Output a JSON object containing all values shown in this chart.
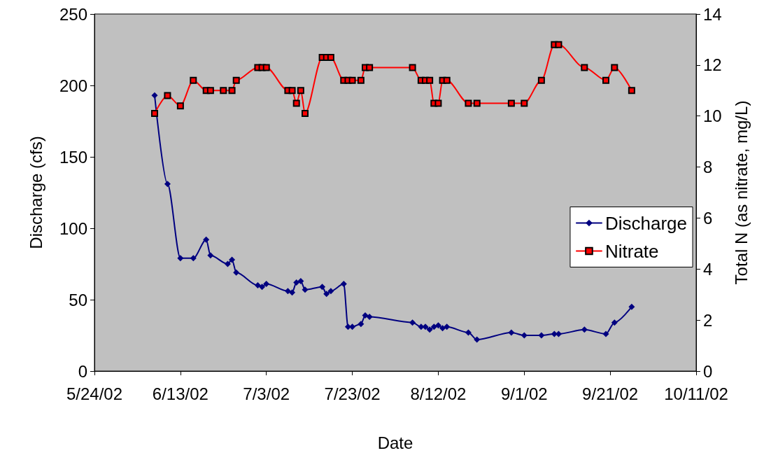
{
  "chart_data": {
    "type": "line",
    "xlabel": "Date",
    "ylabel": "Discharge (cfs)",
    "y2label": "Total N (as nitrate, mg/L)",
    "xlim": [
      "2002-05-24",
      "2002-10-11"
    ],
    "xticks": [
      {
        "value": "2002-05-24",
        "label": "5/24/02"
      },
      {
        "value": "2002-06-13",
        "label": "6/13/02"
      },
      {
        "value": "2002-07-03",
        "label": "7/3/02"
      },
      {
        "value": "2002-07-23",
        "label": "7/23/02"
      },
      {
        "value": "2002-08-12",
        "label": "8/12/02"
      },
      {
        "value": "2002-09-01",
        "label": "9/1/02"
      },
      {
        "value": "2002-09-21",
        "label": "9/21/02"
      },
      {
        "value": "2002-10-11",
        "label": "10/11/02"
      }
    ],
    "ylim": [
      0,
      250
    ],
    "yticks": [
      0,
      50,
      100,
      150,
      200,
      250
    ],
    "y2lim": [
      0,
      14
    ],
    "y2ticks": [
      0,
      2,
      4,
      6,
      8,
      10,
      12,
      14
    ],
    "grid": false,
    "legend": "right",
    "line_style": "solid",
    "series": [
      {
        "name": "Discharge",
        "color": "#000080",
        "marker": "diamond",
        "x": [
          "2002-06-07",
          "2002-06-10",
          "2002-06-13",
          "2002-06-16",
          "2002-06-19",
          "2002-06-20",
          "2002-06-24",
          "2002-06-25",
          "2002-06-26",
          "2002-07-01",
          "2002-07-02",
          "2002-07-03",
          "2002-07-08",
          "2002-07-09",
          "2002-07-10",
          "2002-07-11",
          "2002-07-12",
          "2002-07-16",
          "2002-07-17",
          "2002-07-18",
          "2002-07-21",
          "2002-07-22",
          "2002-07-23",
          "2002-07-25",
          "2002-07-26",
          "2002-07-27",
          "2002-08-06",
          "2002-08-08",
          "2002-08-09",
          "2002-08-10",
          "2002-08-11",
          "2002-08-12",
          "2002-08-13",
          "2002-08-14",
          "2002-08-19",
          "2002-08-21",
          "2002-08-29",
          "2002-09-01",
          "2002-09-05",
          "2002-09-08",
          "2002-09-09",
          "2002-09-15",
          "2002-09-20",
          "2002-09-22",
          "2002-09-26"
        ],
        "values": [
          193,
          131,
          79,
          79,
          92,
          81,
          75,
          78,
          69,
          60,
          59,
          61,
          56,
          55,
          62,
          63,
          57,
          59,
          54,
          56,
          61,
          31,
          31,
          33,
          39,
          38,
          34,
          31,
          31,
          29,
          31,
          32,
          30,
          31,
          27,
          22,
          27,
          25,
          25,
          26,
          26,
          29,
          26,
          34,
          45
        ]
      },
      {
        "name": "Nitrate",
        "color": "#ff0000",
        "marker": "square",
        "axis": "y2",
        "x": [
          "2002-06-07",
          "2002-06-10",
          "2002-06-13",
          "2002-06-16",
          "2002-06-19",
          "2002-06-20",
          "2002-06-23",
          "2002-06-25",
          "2002-06-26",
          "2002-07-01",
          "2002-07-02",
          "2002-07-03",
          "2002-07-08",
          "2002-07-09",
          "2002-07-10",
          "2002-07-11",
          "2002-07-12",
          "2002-07-16",
          "2002-07-17",
          "2002-07-18",
          "2002-07-21",
          "2002-07-22",
          "2002-07-23",
          "2002-07-25",
          "2002-07-26",
          "2002-07-27",
          "2002-08-06",
          "2002-08-08",
          "2002-08-09",
          "2002-08-10",
          "2002-08-11",
          "2002-08-12",
          "2002-08-13",
          "2002-08-14",
          "2002-08-19",
          "2002-08-21",
          "2002-08-29",
          "2002-09-01",
          "2002-09-05",
          "2002-09-08",
          "2002-09-09",
          "2002-09-15",
          "2002-09-20",
          "2002-09-22",
          "2002-09-26"
        ],
        "values": [
          10.1,
          10.8,
          10.4,
          11.4,
          11.0,
          11.0,
          11.0,
          11.0,
          11.4,
          11.9,
          11.9,
          11.9,
          11.0,
          11.0,
          10.5,
          11.0,
          10.1,
          12.3,
          12.3,
          12.3,
          11.4,
          11.4,
          11.4,
          11.4,
          11.9,
          11.9,
          11.9,
          11.4,
          11.4,
          11.4,
          10.5,
          10.5,
          11.4,
          11.4,
          10.5,
          10.5,
          10.5,
          10.5,
          11.4,
          12.8,
          12.8,
          11.9,
          11.4,
          11.9,
          11.0
        ]
      }
    ]
  }
}
